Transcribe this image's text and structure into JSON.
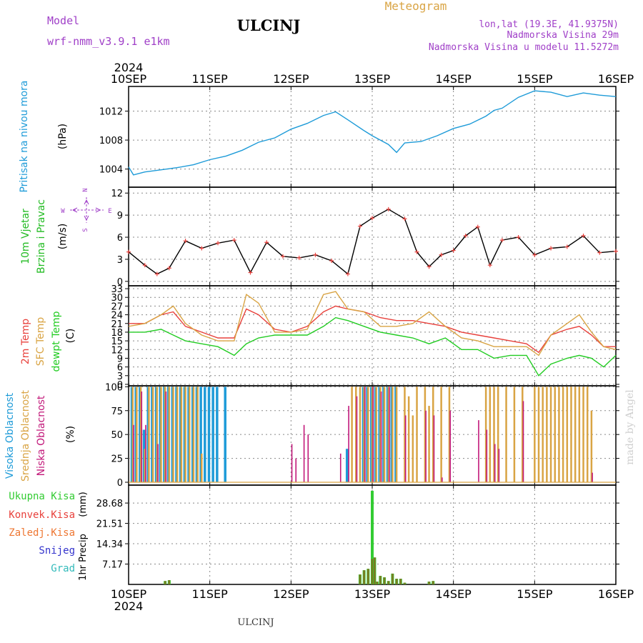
{
  "header": {
    "model_label": "Model",
    "model_name": "wrf-nmm_v3.9.1 e1km",
    "station": "ULCINJ",
    "product": "Meteogram",
    "lonlat": "lon,lat (19.3E, 41.9375N)",
    "altitude": "Nadmorska Visina 29m",
    "model_altitude": "Nadmorska Visina u modelu 11.5272m"
  },
  "footer_station": "ULCINJ",
  "credit": "made by Angel",
  "time_axis": {
    "year": "2024",
    "ticks": [
      "10SEP",
      "11SEP",
      "12SEP",
      "13SEP",
      "14SEP",
      "15SEP",
      "16SEP"
    ]
  },
  "compass": {
    "n": "N",
    "s": "S",
    "e": "E",
    "w": "W"
  },
  "colors": {
    "pressure": "#1e9bd8",
    "wind_label": "#22bb22",
    "temp2m": "#e8413c",
    "sfc_temp": "#d9a444",
    "dewpt": "#22cc22",
    "high_cloud": "#1e9bd8",
    "mid_cloud": "#d9a444",
    "low_cloud": "#c2187a",
    "total_precip": "#33cc33",
    "conv_precip": "#e8413c",
    "frozen_precip": "#ee7733",
    "snow": "#3333cc",
    "graupel": "#33bbbb",
    "header_purple": "#a040c8",
    "header_gold": "#d9a444"
  },
  "chart_data": [
    {
      "type": "line",
      "panel": "pressure",
      "ylabel": "Pritisak na nivou mora",
      "unit": "(hPa)",
      "yticks": [
        1004,
        1008,
        1012
      ],
      "ylim": [
        1001.5,
        1015.4
      ],
      "grid": true,
      "x": [
        0,
        0.06,
        0.2,
        0.4,
        0.6,
        0.8,
        1.0,
        1.2,
        1.4,
        1.6,
        1.8,
        2.0,
        2.2,
        2.4,
        2.55,
        2.7,
        2.9,
        3.0,
        3.1,
        3.2,
        3.3,
        3.4,
        3.6,
        3.8,
        4.0,
        4.2,
        4.4,
        4.5,
        4.6,
        4.8,
        5.0,
        5.2,
        5.4,
        5.6,
        5.8,
        6.0
      ],
      "series": [
        {
          "name": "Pritisak na nivou mora",
          "values": [
            1004.3,
            1003.2,
            1003.6,
            1003.9,
            1004.2,
            1004.6,
            1005.3,
            1005.8,
            1006.6,
            1007.7,
            1008.3,
            1009.5,
            1010.3,
            1011.4,
            1011.9,
            1010.8,
            1009.3,
            1008.6,
            1008.0,
            1007.4,
            1006.3,
            1007.6,
            1007.8,
            1008.6,
            1009.6,
            1010.2,
            1011.3,
            1012.1,
            1012.4,
            1013.9,
            1014.8,
            1014.6,
            1014.0,
            1014.5,
            1014.2,
            1014.0
          ]
        }
      ]
    },
    {
      "type": "line",
      "panel": "wind",
      "ylabel_lines": [
        "10m Vjetar",
        "Brzina i Pravac"
      ],
      "unit": "(m/s)",
      "yticks": [
        0,
        3,
        6,
        9,
        12
      ],
      "ylim": [
        -0.6,
        12.8
      ],
      "grid": true,
      "x": [
        0,
        0.2,
        0.35,
        0.5,
        0.7,
        0.9,
        1.1,
        1.3,
        1.5,
        1.7,
        1.9,
        2.1,
        2.3,
        2.5,
        2.7,
        2.85,
        3.0,
        3.2,
        3.4,
        3.55,
        3.7,
        3.85,
        4.0,
        4.15,
        4.3,
        4.45,
        4.6,
        4.8,
        5.0,
        5.2,
        5.4,
        5.6,
        5.8,
        6.0
      ],
      "series": [
        {
          "name": "10m Vjetar Brzina",
          "values": [
            4.0,
            2.2,
            1.0,
            1.8,
            5.5,
            4.5,
            5.2,
            5.6,
            1.2,
            5.3,
            3.4,
            3.2,
            3.6,
            2.8,
            1.0,
            7.5,
            8.6,
            9.8,
            8.5,
            4.0,
            2.0,
            3.6,
            4.2,
            6.2,
            7.4,
            2.2,
            5.6,
            6.0,
            3.6,
            4.5,
            4.7,
            6.2,
            3.9,
            4.1
          ]
        }
      ]
    },
    {
      "type": "line",
      "panel": "temperature",
      "ylabel_lines": [
        "2m Temp",
        "SFC Temp",
        "dewpt Temp"
      ],
      "unit": "(C)",
      "yticks": [
        0,
        3,
        6,
        9,
        12,
        15,
        18,
        21,
        24,
        27,
        30,
        33
      ],
      "ylim": [
        -0.5,
        34
      ],
      "grid": true,
      "x": [
        0,
        0.2,
        0.4,
        0.55,
        0.7,
        0.9,
        1.1,
        1.3,
        1.45,
        1.6,
        1.8,
        2.0,
        2.2,
        2.4,
        2.55,
        2.7,
        2.9,
        3.1,
        3.3,
        3.5,
        3.7,
        3.9,
        4.1,
        4.3,
        4.5,
        4.7,
        4.9,
        5.05,
        5.2,
        5.4,
        5.55,
        5.7,
        5.85,
        6.0
      ],
      "series": [
        {
          "name": "2m Temp",
          "values": [
            21,
            21,
            24,
            25,
            20,
            18,
            16,
            16,
            26,
            24,
            19,
            18,
            20,
            25,
            27,
            26,
            25,
            23,
            22,
            22,
            21,
            20,
            18,
            17,
            16,
            15,
            14,
            11,
            17,
            19,
            20,
            17,
            13,
            13
          ]
        },
        {
          "name": "SFC Temp",
          "values": [
            20,
            21,
            24,
            27,
            21,
            17,
            15,
            15,
            31,
            28,
            18,
            18,
            19,
            31,
            32,
            26,
            25,
            20,
            20,
            21,
            25,
            20,
            16,
            15,
            13,
            13,
            13,
            10,
            17,
            21,
            24,
            18,
            13,
            12
          ]
        },
        {
          "name": "dewpt Temp",
          "values": [
            18,
            18,
            19,
            17,
            15,
            14,
            13,
            10,
            14,
            16,
            17,
            17,
            17,
            20,
            23,
            22,
            20,
            18,
            17,
            16,
            14,
            16,
            12,
            12,
            9,
            10,
            10,
            3,
            7,
            9,
            10,
            9,
            6,
            10
          ]
        }
      ]
    },
    {
      "type": "bar",
      "panel": "cloud",
      "ylabel_lines": [
        "Visoka Oblacnost",
        "Srednja Oblacnost",
        "Niska Oblacnost"
      ],
      "unit": "(%)",
      "yticks": [
        0,
        25,
        50,
        75,
        100
      ],
      "ylim": [
        -3,
        101
      ],
      "grid": true,
      "x": [
        0.05,
        0.1,
        0.15,
        0.2,
        0.25,
        0.3,
        0.35,
        0.4,
        0.45,
        0.5,
        0.55,
        0.6,
        0.65,
        0.7,
        0.75,
        0.8,
        0.85,
        0.9,
        0.95,
        1.0,
        1.05,
        1.1,
        1.2,
        2.0,
        2.05,
        2.15,
        2.2,
        2.6,
        2.7,
        2.75,
        2.8,
        2.85,
        2.9,
        2.95,
        3.0,
        3.05,
        3.1,
        3.15,
        3.2,
        3.25,
        3.3,
        3.4,
        3.45,
        3.5,
        3.55,
        3.65,
        3.7,
        3.75,
        3.85,
        3.95,
        4.3,
        4.35,
        4.4,
        4.45,
        4.5,
        4.55,
        4.65,
        4.75,
        4.85,
        5.0,
        5.05,
        5.1,
        5.15,
        5.2,
        5.25,
        5.3,
        5.35,
        5.4,
        5.45,
        5.5,
        5.55,
        5.6,
        5.65,
        5.7
      ],
      "series": [
        {
          "name": "Visoka Oblacnost",
          "values": [
            100,
            100,
            100,
            55,
            100,
            100,
            100,
            100,
            100,
            100,
            100,
            100,
            100,
            100,
            100,
            100,
            100,
            100,
            100,
            100,
            100,
            100,
            100,
            0,
            0,
            0,
            0,
            0,
            35,
            0,
            0,
            0,
            100,
            100,
            100,
            100,
            100,
            100,
            100,
            100,
            100,
            0,
            0,
            0,
            0,
            0,
            0,
            0,
            0,
            0,
            0,
            0,
            0,
            0,
            0,
            0,
            0,
            0,
            0,
            0,
            0,
            0,
            0,
            0,
            0,
            0,
            0,
            0,
            0,
            0,
            0,
            0,
            0,
            0
          ]
        },
        {
          "name": "Srednja Oblacnost",
          "values": [
            100,
            100,
            100,
            35,
            100,
            100,
            100,
            100,
            100,
            100,
            100,
            100,
            100,
            100,
            100,
            100,
            100,
            30,
            0,
            0,
            0,
            0,
            0,
            0,
            0,
            0,
            0,
            0,
            0,
            100,
            100,
            100,
            100,
            100,
            100,
            100,
            100,
            100,
            100,
            100,
            100,
            100,
            90,
            70,
            100,
            100,
            80,
            100,
            100,
            100,
            0,
            0,
            100,
            100,
            100,
            100,
            100,
            100,
            100,
            100,
            100,
            100,
            100,
            100,
            100,
            100,
            100,
            100,
            100,
            100,
            100,
            100,
            100,
            75
          ]
        },
        {
          "name": "Niska Oblacnost",
          "values": [
            60,
            0,
            95,
            60,
            0,
            0,
            40,
            0,
            95,
            0,
            0,
            0,
            0,
            0,
            0,
            0,
            0,
            0,
            0,
            0,
            0,
            0,
            0,
            40,
            25,
            60,
            50,
            30,
            80,
            0,
            90,
            0,
            100,
            0,
            100,
            0,
            95,
            0,
            100,
            0,
            0,
            70,
            0,
            0,
            0,
            75,
            0,
            70,
            5,
            75,
            65,
            0,
            55,
            0,
            40,
            35,
            0,
            0,
            85,
            0,
            0,
            0,
            0,
            0,
            0,
            0,
            0,
            0,
            0,
            0,
            0,
            0,
            0,
            10
          ]
        }
      ]
    },
    {
      "type": "bar",
      "panel": "precip",
      "legend": [
        "Ukupna Kisa",
        "Konvek.Kisa",
        "Zaledj.Kisa",
        "Snijeg",
        "Grad"
      ],
      "ylabel": "1hr Precip",
      "unit": "(mm)",
      "yticks": [
        7.17,
        14.34,
        21.51,
        28.68
      ],
      "ylim": [
        0,
        35
      ],
      "grid": true,
      "x": [
        0.45,
        0.5,
        2.85,
        2.9,
        2.95,
        3.0,
        3.03,
        3.06,
        3.1,
        3.15,
        3.2,
        3.25,
        3.3,
        3.35,
        3.4,
        3.7,
        3.75
      ],
      "series": [
        {
          "name": "Ukupna Kisa",
          "values": [
            1.2,
            1.5,
            3.5,
            5.0,
            5.5,
            33.0,
            9.5,
            1.0,
            3.0,
            2.5,
            1.2,
            3.8,
            2.0,
            2.0,
            0.6,
            1.0,
            1.2
          ]
        },
        {
          "name": "Konvek.Kisa",
          "values": [
            1.2,
            1.5,
            3.5,
            5.0,
            5.5,
            9.0,
            9.5,
            1.0,
            3.0,
            2.5,
            1.2,
            3.8,
            2.0,
            2.0,
            0.6,
            1.0,
            1.2
          ]
        }
      ]
    }
  ]
}
